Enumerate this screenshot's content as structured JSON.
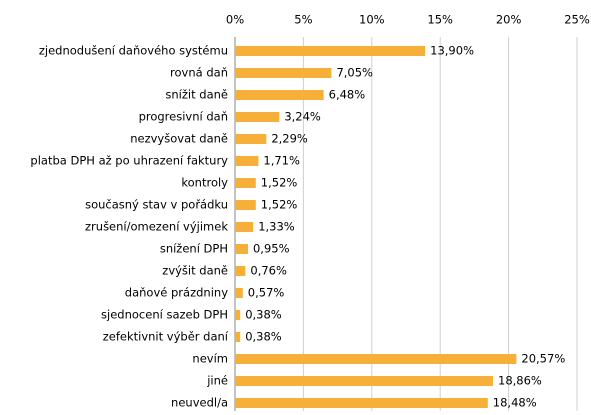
{
  "chart_data": {
    "type": "barh",
    "categories": [
      "zjednodušení daňového systému",
      "rovná daň",
      "snížit daně",
      "progresivní daň",
      "nezvyšovat daně",
      "platba DPH až po uhrazení faktury",
      "kontroly",
      "současný stav v pořádku",
      "zrušení/omezení výjimek",
      "snížení DPH",
      "zvýšit daně",
      "daňové prázdniny",
      "sjednocení sazeb DPH",
      "zefektivnit výběr daní",
      "nevím",
      "jiné",
      "neuvedl/a"
    ],
    "values": [
      13.9,
      7.05,
      6.48,
      3.24,
      2.29,
      1.71,
      1.52,
      1.52,
      1.33,
      0.95,
      0.76,
      0.57,
      0.38,
      0.38,
      20.57,
      18.86,
      18.48
    ],
    "value_labels": [
      "13,90%",
      "7,05%",
      "6,48%",
      "3,24%",
      "2,29%",
      "1,71%",
      "1,52%",
      "1,52%",
      "1,33%",
      "0,95%",
      "0,76%",
      "0,57%",
      "0,38%",
      "0,38%",
      "20,57%",
      "18,86%",
      "18,48%"
    ],
    "color": "#f6b03a",
    "xlim": [
      0,
      25
    ],
    "xticks": [
      {
        "value": 0,
        "label": "0%"
      },
      {
        "value": 5,
        "label": "5%"
      },
      {
        "value": 10,
        "label": "10%"
      },
      {
        "value": 15,
        "label": "15%"
      },
      {
        "value": 20,
        "label": "20%"
      },
      {
        "value": 25,
        "label": "25%"
      }
    ],
    "grid": true
  }
}
